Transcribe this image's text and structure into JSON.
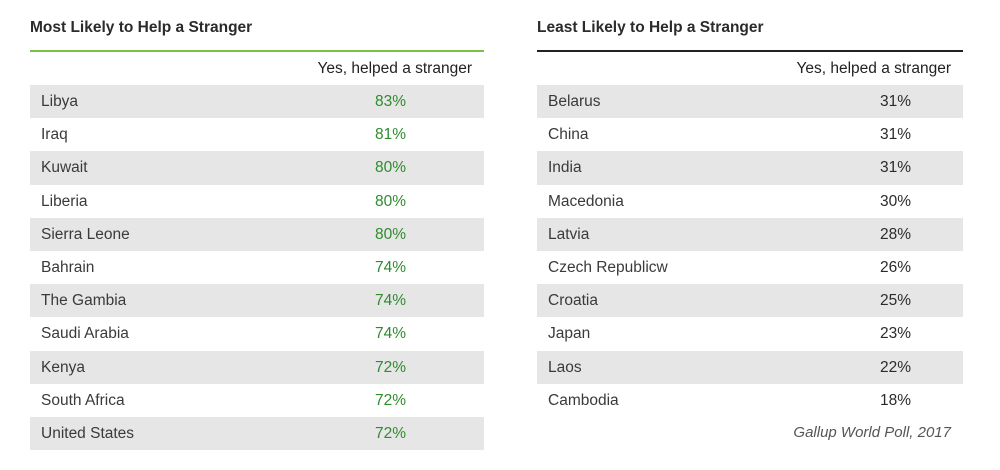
{
  "chart_data": [
    {
      "type": "table",
      "title": "Most Likely to Help a Stranger",
      "column_header": "Yes, helped a stranger",
      "rows": [
        {
          "country": "Libya",
          "value": "83%"
        },
        {
          "country": "Iraq",
          "value": "81%"
        },
        {
          "country": "Kuwait",
          "value": "80%"
        },
        {
          "country": "Liberia",
          "value": "80%"
        },
        {
          "country": "Sierra Leone",
          "value": "80%"
        },
        {
          "country": "Bahrain",
          "value": "74%"
        },
        {
          "country": "The Gambia",
          "value": "74%"
        },
        {
          "country": "Saudi Arabia",
          "value": "74%"
        },
        {
          "country": "Kenya",
          "value": "72%"
        },
        {
          "country": "South Africa",
          "value": "72%"
        },
        {
          "country": "United States",
          "value": "72%"
        }
      ],
      "rule_color": "#7ac143",
      "value_color": "#2e8b2e"
    },
    {
      "type": "table",
      "title": "Least Likely to Help a Stranger",
      "column_header": "Yes, helped a stranger",
      "rows": [
        {
          "country": "Belarus",
          "value": "31%"
        },
        {
          "country": "China",
          "value": "31%"
        },
        {
          "country": "India",
          "value": "31%"
        },
        {
          "country": "Macedonia",
          "value": "30%"
        },
        {
          "country": "Latvia",
          "value": "28%"
        },
        {
          "country": "Czech Republicw",
          "value": "26%"
        },
        {
          "country": "Croatia",
          "value": "25%"
        },
        {
          "country": "Japan",
          "value": "23%"
        },
        {
          "country": "Laos",
          "value": "22%"
        },
        {
          "country": "Cambodia",
          "value": "18%"
        }
      ],
      "rule_color": "#222222",
      "value_color": "#2b2b2b"
    }
  ],
  "source": "Gallup World Poll, 2017"
}
